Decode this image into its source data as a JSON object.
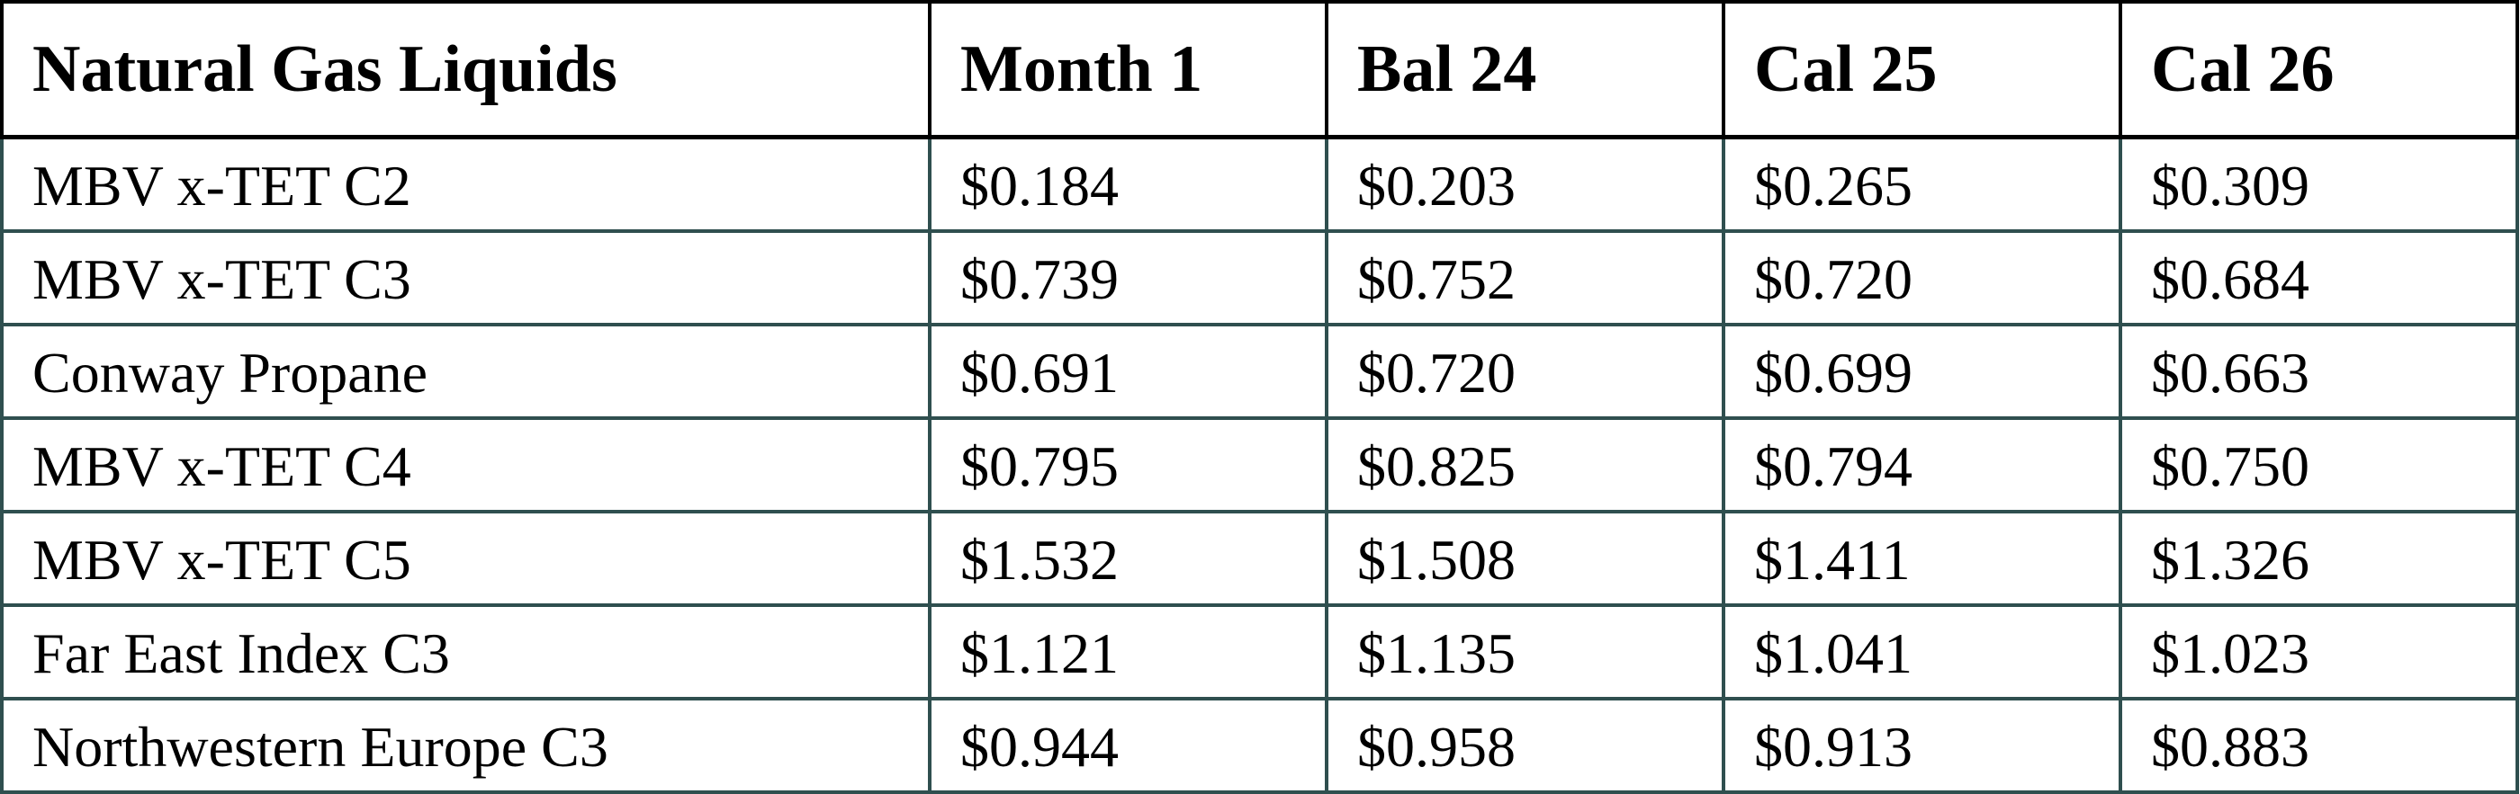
{
  "table": {
    "headers": [
      "Natural Gas Liquids",
      "Month 1",
      "Bal 24",
      "Cal 25",
      "Cal 26"
    ],
    "rows": [
      [
        "MBV x-TET C2",
        "$0.184",
        "$0.203",
        "$0.265",
        "$0.309"
      ],
      [
        "MBV x-TET C3",
        "$0.739",
        "$0.752",
        "$0.720",
        "$0.684"
      ],
      [
        "Conway Propane",
        "$0.691",
        "$0.720",
        "$0.699",
        "$0.663"
      ],
      [
        "MBV x-TET C4",
        "$0.795",
        "$0.825",
        "$0.794",
        "$0.750"
      ],
      [
        "MBV x-TET C5",
        "$1.532",
        "$1.508",
        "$1.411",
        "$1.326"
      ],
      [
        "Far East Index C3",
        "$1.121",
        "$1.135",
        "$1.041",
        "$1.023"
      ],
      [
        "Northwestern Europe C3",
        "$0.944",
        "$0.958",
        "$0.913",
        "$0.883"
      ]
    ]
  },
  "colors": {
    "header_border": "#000000",
    "body_border": "#2f4f4f"
  }
}
